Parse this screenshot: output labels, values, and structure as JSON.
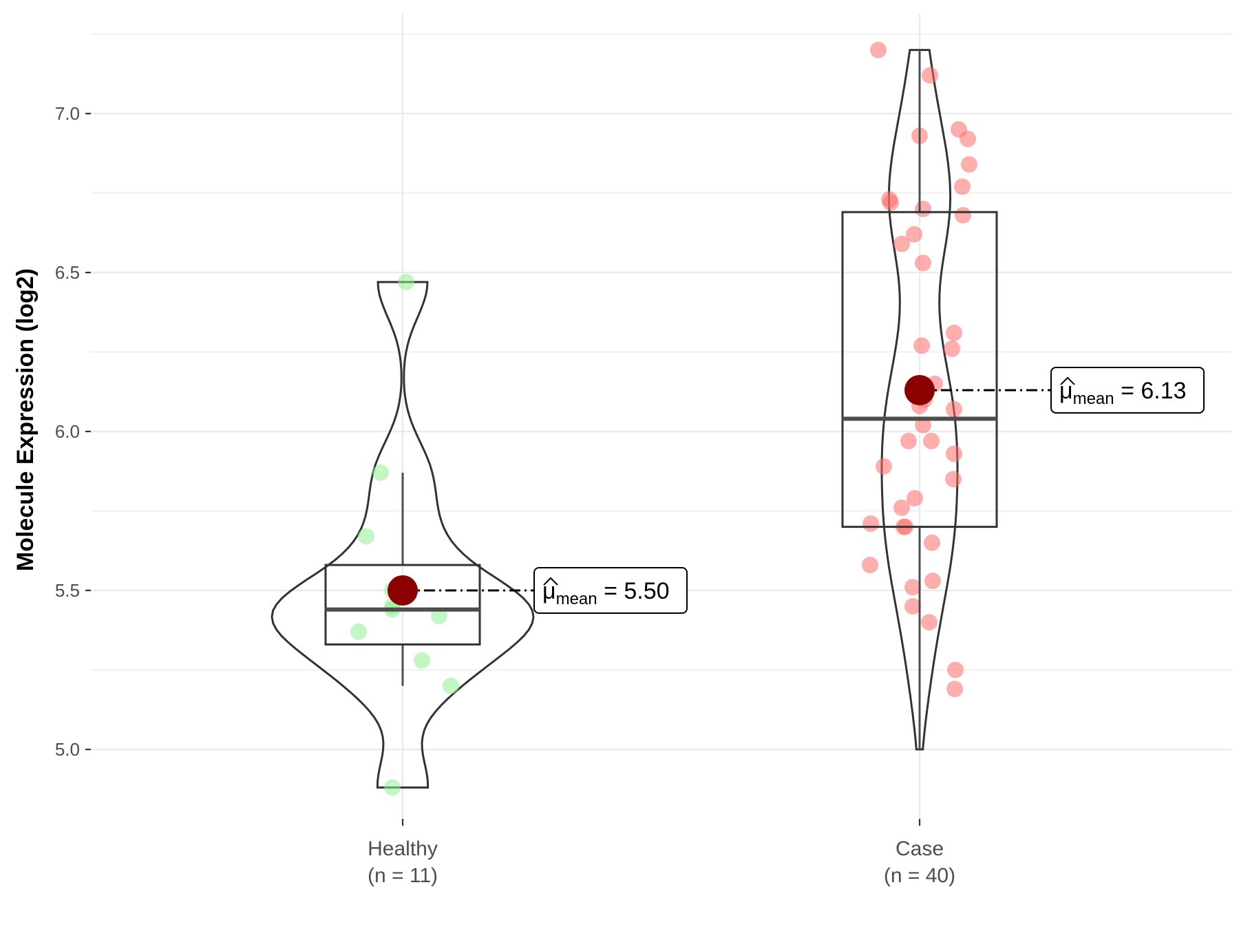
{
  "chart_data": {
    "type": "violin-box-scatter",
    "title": "",
    "xlabel": "",
    "ylabel": "Molecule Expression (log2)",
    "ylim": [
      4.8,
      7.25
    ],
    "yticks": [
      "5.0",
      "5.5",
      "6.0",
      "6.5",
      "7.0"
    ],
    "grid": true,
    "groups": [
      {
        "label": "Healthy",
        "n_label": "(n = 11)",
        "color": "#90ee90",
        "values": [
          6.47,
          5.87,
          5.67,
          5.5,
          5.45,
          5.44,
          5.42,
          5.37,
          5.28,
          5.2,
          4.88
        ],
        "box": {
          "min": 5.2,
          "q1": 5.33,
          "median": 5.44,
          "q3": 5.58,
          "max": 5.87
        },
        "violin": {
          "min": 4.88,
          "max": 6.47
        },
        "mean": 5.5,
        "mean_value_text": "5.50"
      },
      {
        "label": "Case",
        "n_label": "(n = 40)",
        "color": "#ff6b6b",
        "values": [
          7.2,
          7.12,
          6.95,
          6.93,
          6.92,
          6.84,
          6.77,
          6.73,
          6.72,
          6.7,
          6.68,
          6.62,
          6.59,
          6.53,
          6.31,
          6.27,
          6.26,
          6.15,
          6.1,
          6.08,
          6.07,
          6.02,
          5.97,
          5.97,
          5.93,
          5.89,
          5.85,
          5.79,
          5.76,
          5.71,
          5.7,
          5.7,
          5.65,
          5.58,
          5.53,
          5.51,
          5.45,
          5.4,
          5.25,
          5.19
        ],
        "box": {
          "min": 5.0,
          "q1": 5.7,
          "median": 6.04,
          "q3": 6.69,
          "max": 7.2
        },
        "violin": {
          "min": 5.0,
          "max": 7.2
        },
        "mean": 6.13,
        "mean_value_text": "6.13"
      }
    ],
    "mean_marker_color": "#8b0000",
    "mean_label_prefix": "μ",
    "mean_label_sub": "mean",
    "mean_label_eq": "="
  }
}
